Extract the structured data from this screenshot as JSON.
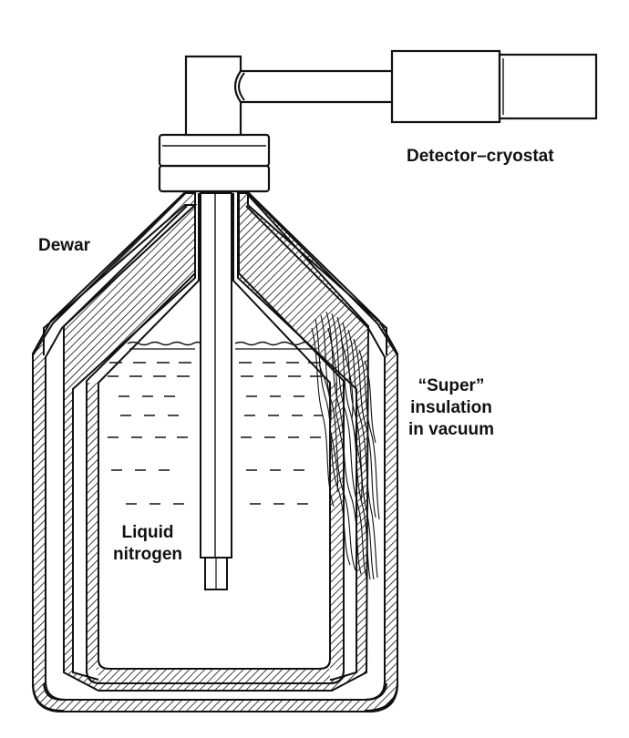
{
  "labels": {
    "detector_cryostat": "Detector–cryostat",
    "dewar": "Dewar",
    "super_insulation": [
      "“Super”",
      "insulation",
      "in vacuum"
    ],
    "liquid_nitrogen": [
      "Liquid",
      "nitrogen"
    ]
  },
  "colors": {
    "ink": "#111111",
    "background": "#ffffff"
  }
}
